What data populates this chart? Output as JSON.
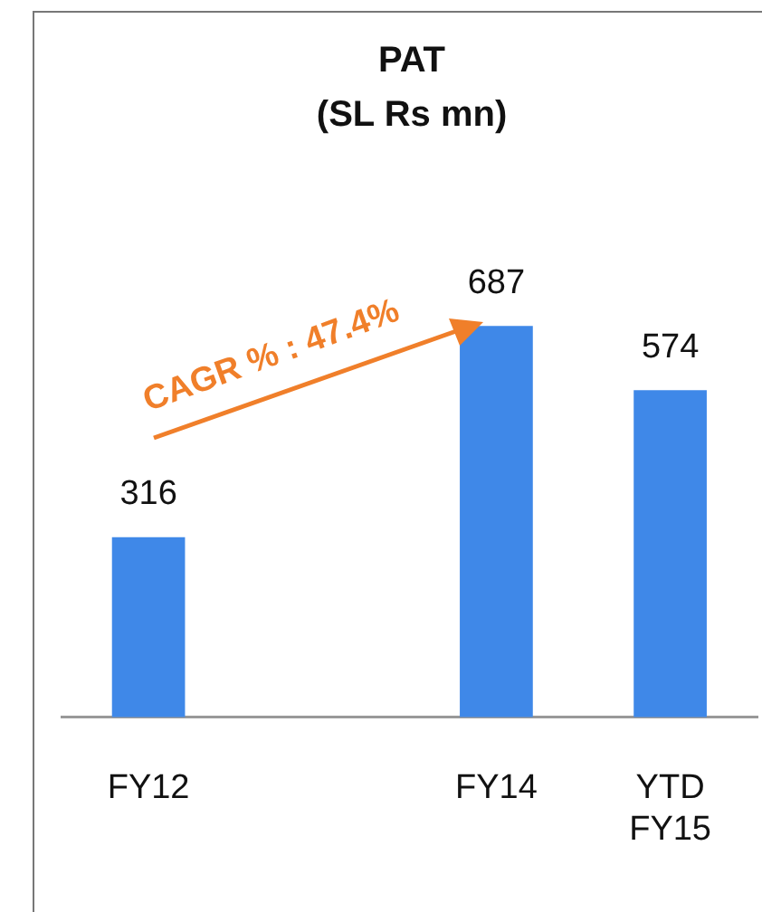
{
  "chart_data": {
    "type": "bar",
    "title": "PAT",
    "subtitle": "(SL Rs mn)",
    "categories": [
      "FY12",
      null,
      "FY14",
      "YTD FY15"
    ],
    "values": [
      316,
      null,
      687,
      574
    ],
    "color": "#3f88e8",
    "data_labels": true,
    "annotations": [
      "CAGR % : 47.4%"
    ],
    "legend": false,
    "grid": false
  }
}
